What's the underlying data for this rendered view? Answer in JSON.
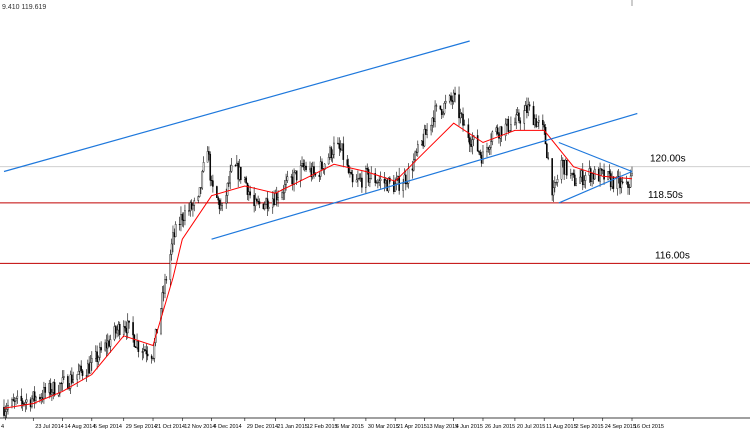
{
  "header": {
    "ohlc_readout": "9.410 119.619"
  },
  "colors": {
    "candle": "#000000",
    "moving_average": "#ff0000",
    "trendline": "#1e78dc",
    "horizontal_level": "#c00000",
    "axis": "#000000",
    "background": "#ffffff"
  },
  "chart_data": {
    "type": "candlestick",
    "title": "",
    "xlabel": "",
    "ylabel": "",
    "y_axis_visible": false,
    "ylim": [
      109.6,
      126.4
    ],
    "x_tick_labels": [
      "23 Jul 2014",
      "14 Aug 2014",
      "5 Sep 2014",
      "29 Sep 2014",
      "21 Oct 2014",
      "12 Nov 2014",
      "4 Dec 2014",
      "29 Dec 2014",
      "21 Jan 2015",
      "12 Feb 2015",
      "6 Mar 2015",
      "30 Mar 2015",
      "21 Apr 2015",
      "13 May 2015",
      "4 Jun 2015",
      "26 Jun 2015",
      "20 Jul 2015",
      "11 Aug 2015",
      "2 Sep 2015",
      "24 Sep 2015",
      "16 Oct 2015"
    ],
    "partial_first_label": "4",
    "close_path": [
      [
        "1 Jul 2014",
        110.05
      ],
      [
        "23 Jul 2014",
        110.4
      ],
      [
        "14 Aug 2014",
        111.0
      ],
      [
        "5 Sep 2014",
        111.8
      ],
      [
        "29 Sep 2014",
        113.6
      ],
      [
        "10 Oct 2014",
        112.6
      ],
      [
        "21 Oct 2014",
        112.3
      ],
      [
        "5 Nov 2014",
        117.0
      ],
      [
        "12 Nov 2014",
        118.0
      ],
      [
        "24 Nov 2014",
        118.5
      ],
      [
        "1 Dec 2014",
        120.9
      ],
      [
        "4 Dec 2014",
        119.1
      ],
      [
        "12 Dec 2014",
        118.2
      ],
      [
        "20 Dec 2014",
        120.0
      ],
      [
        "29 Dec 2014",
        119.5
      ],
      [
        "5 Jan 2015",
        118.3
      ],
      [
        "21 Jan 2015",
        118.8
      ],
      [
        "29 Jan 2015",
        119.2
      ],
      [
        "12 Feb 2015",
        120.0
      ],
      [
        "20 Feb 2015",
        119.6
      ],
      [
        "6 Mar 2015",
        120.8
      ],
      [
        "12 Mar 2015",
        120.6
      ],
      [
        "20 Mar 2015",
        119.2
      ],
      [
        "30 Mar 2015",
        119.6
      ],
      [
        "10 Apr 2015",
        119.4
      ],
      [
        "21 Apr 2015",
        119.2
      ],
      [
        "30 Apr 2015",
        119.6
      ],
      [
        "13 May 2015",
        121.2
      ],
      [
        "20 May 2015",
        122.2
      ],
      [
        "4 Jun 2015",
        122.8
      ],
      [
        "12 Jun 2015",
        121.6
      ],
      [
        "26 Jun 2015",
        120.4
      ],
      [
        "3 Jul 2015",
        121.4
      ],
      [
        "20 Jul 2015",
        121.8
      ],
      [
        "30 Jul 2015",
        122.4
      ],
      [
        "11 Aug 2015",
        121.4
      ],
      [
        "18 Aug 2015",
        118.8
      ],
      [
        "24 Aug 2015",
        120.2
      ],
      [
        "2 Sep 2015",
        119.4
      ],
      [
        "14 Sep 2015",
        119.7
      ],
      [
        "24 Sep 2015",
        119.6
      ],
      [
        "5 Oct 2015",
        119.3
      ],
      [
        "12 Oct 2015",
        119.1
      ],
      [
        "16 Oct 2015",
        119.6
      ]
    ],
    "moving_average_path": [
      [
        "1 Jul 2014",
        110.0
      ],
      [
        "23 Jul 2014",
        110.2
      ],
      [
        "14 Aug 2014",
        110.7
      ],
      [
        "5 Sep 2014",
        111.4
      ],
      [
        "29 Sep 2014",
        113.0
      ],
      [
        "21 Oct 2014",
        112.6
      ],
      [
        "5 Nov 2014",
        115.4
      ],
      [
        "12 Nov 2014",
        117.0
      ],
      [
        "4 Dec 2014",
        118.8
      ],
      [
        "29 Dec 2014",
        119.2
      ],
      [
        "21 Jan 2015",
        118.9
      ],
      [
        "12 Feb 2015",
        119.5
      ],
      [
        "6 Mar 2015",
        120.1
      ],
      [
        "30 Mar 2015",
        119.8
      ],
      [
        "21 Apr 2015",
        119.4
      ],
      [
        "13 May 2015",
        120.6
      ],
      [
        "4 Jun 2015",
        121.8
      ],
      [
        "26 Jun 2015",
        121.0
      ],
      [
        "20 Jul 2015",
        121.5
      ],
      [
        "11 Aug 2015",
        121.5
      ],
      [
        "2 Sep 2015",
        120.0
      ],
      [
        "24 Sep 2015",
        119.6
      ],
      [
        "16 Oct 2015",
        119.5
      ]
    ],
    "trendlines": [
      {
        "from": [
          "1 Jul 2014",
          119.8
        ],
        "to": [
          "16 Jun 2015",
          125.2
        ]
      },
      {
        "from": [
          "4 Dec 2014",
          117.0
        ],
        "to": [
          "20 Oct 2015",
          122.2
        ]
      },
      {
        "from": [
          "22 Aug 2015",
          121.0
        ],
        "to": [
          "16 Oct 2015",
          119.8
        ]
      },
      {
        "from": [
          "22 Aug 2015",
          118.5
        ],
        "to": [
          "16 Oct 2015",
          119.8
        ]
      }
    ],
    "horizontal_levels": [
      {
        "value": 120.0,
        "label": "120.00s",
        "style": "thin-gray"
      },
      {
        "value": 118.5,
        "label": "118.50s",
        "style": "red"
      },
      {
        "value": 116.0,
        "label": "116.00s",
        "style": "red"
      }
    ]
  }
}
